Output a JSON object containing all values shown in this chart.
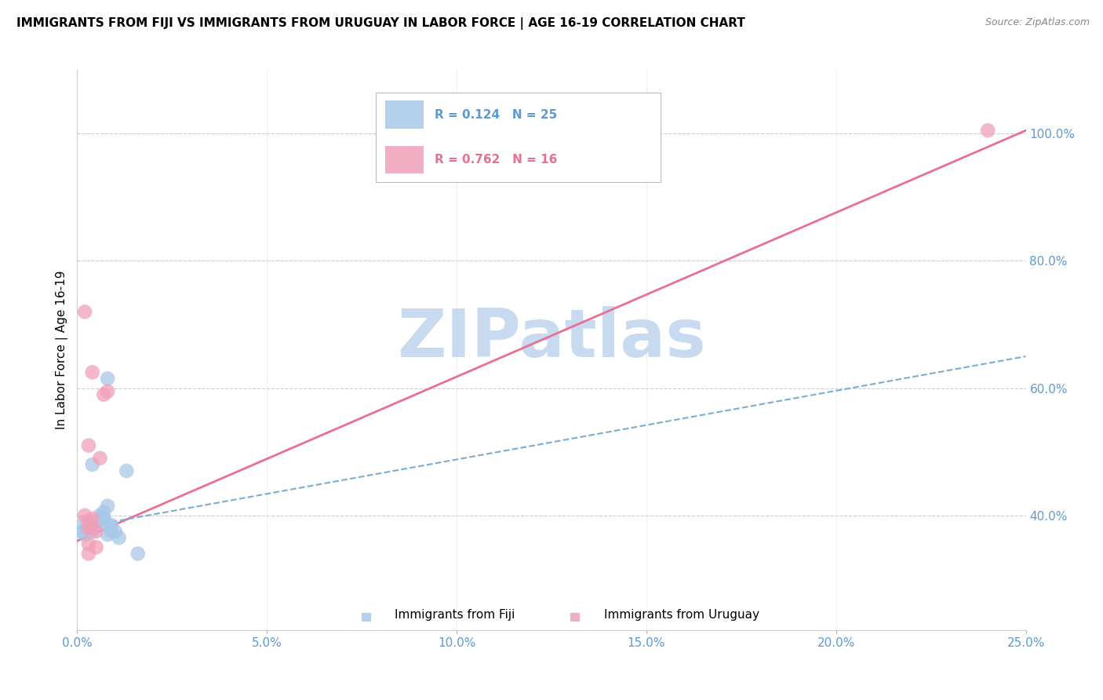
{
  "title": "IMMIGRANTS FROM FIJI VS IMMIGRANTS FROM URUGUAY IN LABOR FORCE | AGE 16-19 CORRELATION CHART",
  "source": "Source: ZipAtlas.com",
  "ylabel": "In Labor Force | Age 16-19",
  "xlim": [
    0.0,
    0.25
  ],
  "ylim": [
    0.22,
    1.1
  ],
  "xticks": [
    0.0,
    0.05,
    0.1,
    0.15,
    0.2,
    0.25
  ],
  "yticks": [
    0.4,
    0.6,
    0.8,
    1.0
  ],
  "fiji_color": "#a8c8e8",
  "uruguay_color": "#f0a0b8",
  "fiji_trend_color": "#7aadd4",
  "uruguay_trend_color": "#e87090",
  "fiji_R": 0.124,
  "fiji_N": 25,
  "uruguay_R": 0.762,
  "uruguay_N": 16,
  "fiji_scatter_x": [
    0.001,
    0.002,
    0.002,
    0.003,
    0.003,
    0.004,
    0.004,
    0.005,
    0.005,
    0.006,
    0.006,
    0.006,
    0.007,
    0.007,
    0.007,
    0.008,
    0.008,
    0.008,
    0.009,
    0.009,
    0.01,
    0.011,
    0.013,
    0.016,
    0.008
  ],
  "fiji_scatter_y": [
    0.375,
    0.39,
    0.37,
    0.385,
    0.38,
    0.375,
    0.48,
    0.385,
    0.39,
    0.395,
    0.395,
    0.4,
    0.395,
    0.395,
    0.405,
    0.385,
    0.37,
    0.415,
    0.385,
    0.375,
    0.375,
    0.365,
    0.47,
    0.34,
    0.615
  ],
  "uruguay_scatter_x": [
    0.002,
    0.002,
    0.003,
    0.003,
    0.003,
    0.003,
    0.004,
    0.004,
    0.004,
    0.005,
    0.005,
    0.006,
    0.007,
    0.008,
    0.24,
    0.003
  ],
  "uruguay_scatter_y": [
    0.4,
    0.72,
    0.39,
    0.38,
    0.51,
    0.34,
    0.38,
    0.395,
    0.625,
    0.375,
    0.35,
    0.49,
    0.59,
    0.595,
    1.005,
    0.355
  ],
  "fiji_trend_x": [
    0.0,
    0.25
  ],
  "fiji_trend_y": [
    0.38,
    0.65
  ],
  "uruguay_trend_x": [
    0.0,
    0.25
  ],
  "uruguay_trend_y": [
    0.36,
    1.005
  ],
  "grid_color": "#cccccc",
  "watermark": "ZIPatlas",
  "watermark_color": "#c8daf0",
  "legend_fiji_label": "Immigrants from Fiji",
  "legend_uruguay_label": "Immigrants from Uruguay"
}
